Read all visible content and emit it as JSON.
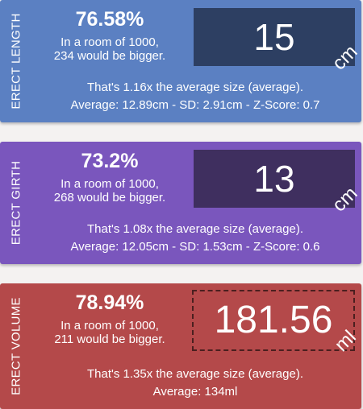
{
  "cards": [
    {
      "side_label": "ERECT LENGTH",
      "percentile": "76.58%",
      "room_line1": "In a room of 1000,",
      "room_line2": "234 would be bigger.",
      "value": "15",
      "unit": "cm",
      "comparison": "That's 1.16x the average size (average).",
      "stats": "Average: 12.89cm - SD: 2.91cm - Z-Score: 0.7",
      "color": "#5b80c2",
      "box_color": "#2d3f62"
    },
    {
      "side_label": "ERECT GIRTH",
      "percentile": "73.2%",
      "room_line1": "In a room of 1000,",
      "room_line2": "268 would be bigger.",
      "value": "13",
      "unit": "cm",
      "comparison": "That's 1.08x the average size (average).",
      "stats": "Average: 12.05cm - SD: 1.53cm - Z-Score: 0.6",
      "color": "#7a56bd",
      "box_color": "#3f2f5f"
    },
    {
      "side_label": "ERECT VOLUME",
      "percentile": "78.94%",
      "room_line1": "In a room of 1000,",
      "room_line2": "211 would be bigger.",
      "value": "181.56",
      "unit": "ml",
      "comparison": "That's 1.35x the average size (average).",
      "stats": "Average: 134ml",
      "color": "#b4494a",
      "box_style": "dashed"
    }
  ]
}
